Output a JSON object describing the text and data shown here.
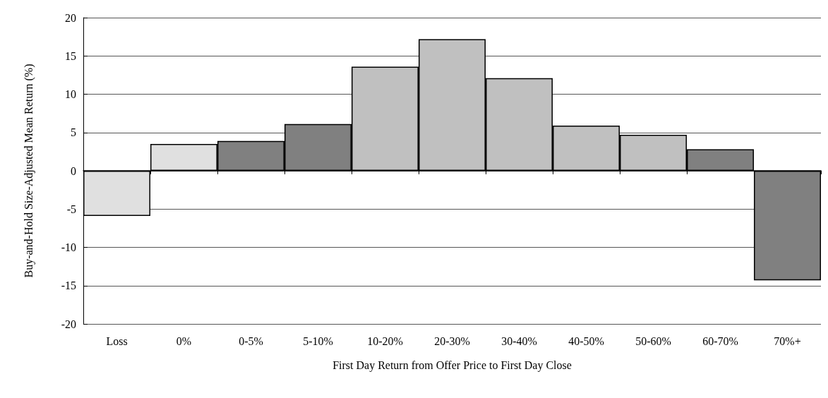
{
  "chart_data": {
    "type": "bar",
    "xlabel": "First Day Return from Offer Price to First Day Close",
    "ylabel": "Buy-and-Hold Size-Adjusted Mean Return (%)",
    "categories": [
      "Loss",
      "0%",
      "0-5%",
      "5-10%",
      "10-20%",
      "20-30%",
      "30-40%",
      "40-50%",
      "50-60%",
      "60-70%",
      "70%+"
    ],
    "values": [
      -5.9,
      3.5,
      3.9,
      6.1,
      13.6,
      17.2,
      12.1,
      5.9,
      4.7,
      2.8,
      -14.3
    ],
    "colors": [
      "#e0e0e0",
      "#e0e0e0",
      "#808080",
      "#808080",
      "#c0c0c0",
      "#c0c0c0",
      "#c0c0c0",
      "#c0c0c0",
      "#c0c0c0",
      "#808080",
      "#808080"
    ],
    "ylim": [
      -20,
      20
    ],
    "yticks": [
      -20,
      -15,
      -10,
      -5,
      0,
      5,
      10,
      15,
      20
    ],
    "grid": "y"
  }
}
